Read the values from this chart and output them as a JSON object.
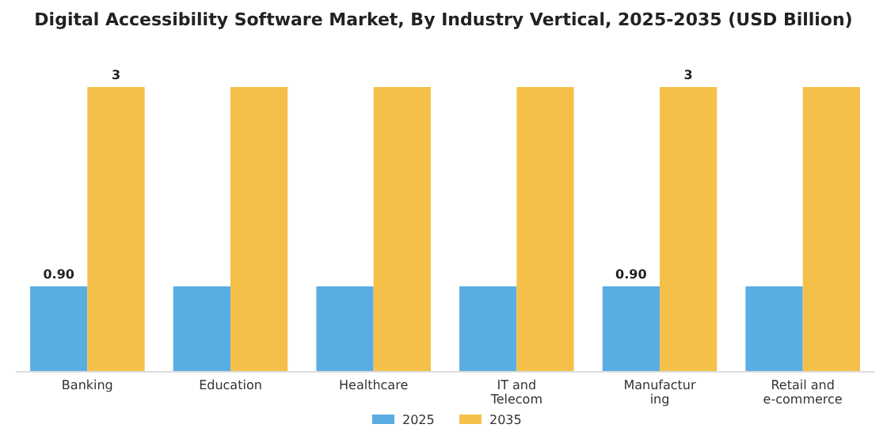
{
  "chart_data": {
    "type": "bar",
    "title": "Digital Accessibility Software Market, By Industry Vertical, 2025-2035 (USD Billion)",
    "categories": [
      "Banking",
      "Education",
      "Healthcare",
      "IT and\nTelecom",
      "Manufactur\ning",
      "Retail and\ne-commerce"
    ],
    "legend": "bottom",
    "series": [
      {
        "name": "2025",
        "color": "#5aade2",
        "values": [
          0.9,
          0.9,
          0.9,
          0.9,
          0.9,
          0.9
        ],
        "value_labels": [
          "0.90",
          null,
          null,
          null,
          "0.90",
          null
        ]
      },
      {
        "name": "2035",
        "color": "#f5c04a",
        "values": [
          3,
          3,
          3,
          3,
          3,
          3
        ],
        "value_labels": [
          "3",
          null,
          null,
          null,
          "3",
          null
        ]
      }
    ]
  }
}
